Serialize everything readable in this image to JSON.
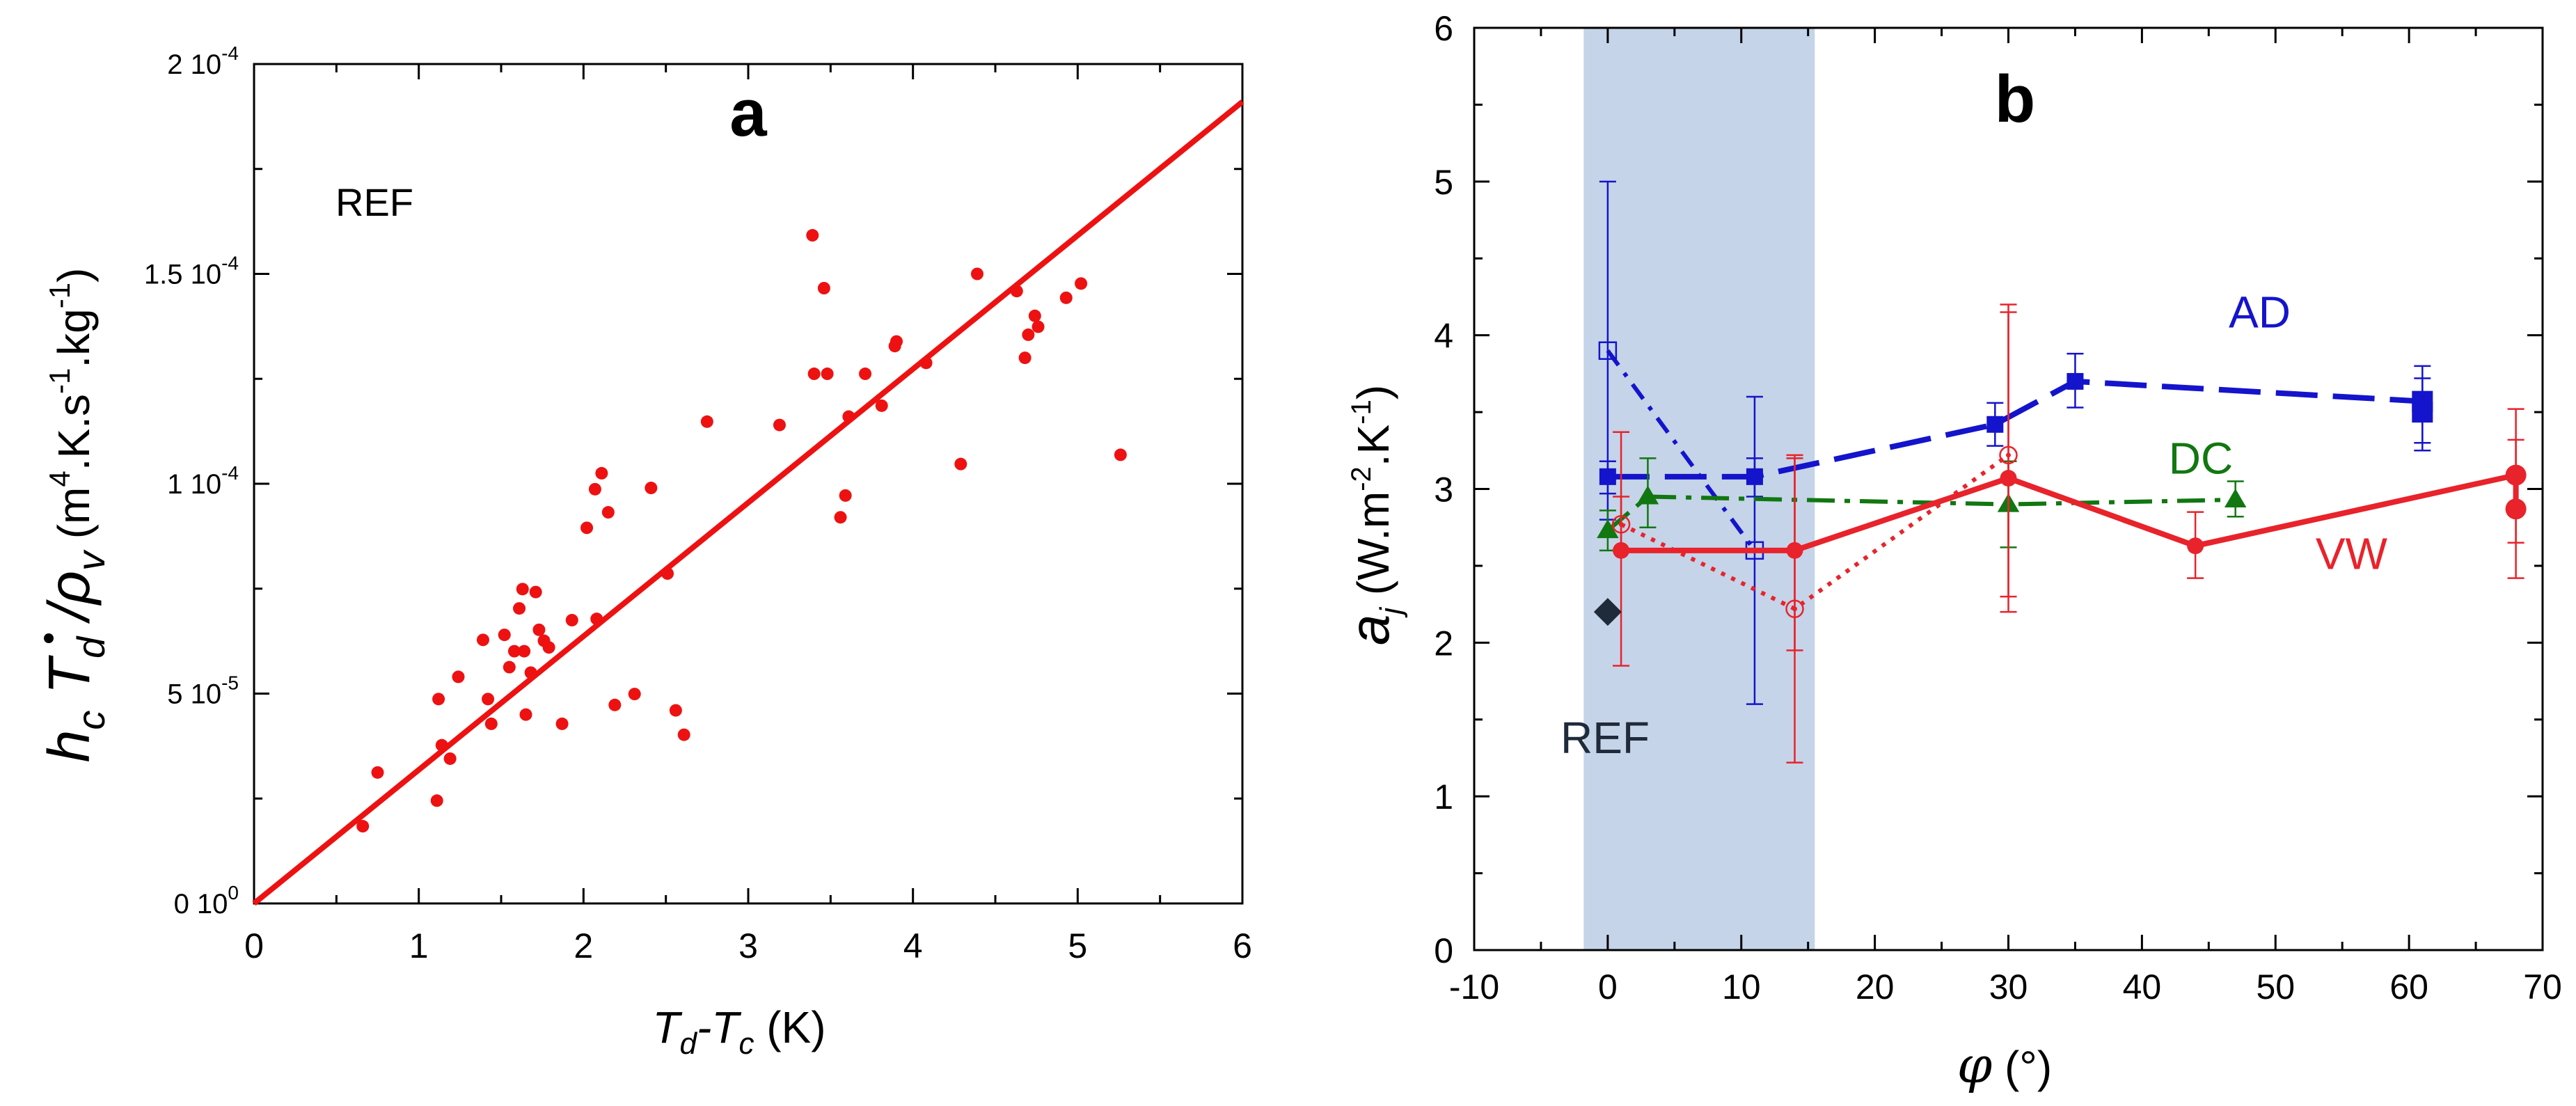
{
  "colors": {
    "axis": "#000000",
    "fit_line": "#ee1111",
    "scatter": "#ee1111",
    "vw": "#e8232b",
    "ad": "#1414cc",
    "dc": "#117711",
    "ref_diamond": "#1f2a3a",
    "ref_band": "#c5d4e8"
  },
  "chart_data": [
    {
      "type": "scatter",
      "panel_label": "a",
      "annotation": "REF",
      "xlabel": {
        "main1": "T",
        "sub1": "d",
        "sep": "-T",
        "sub2": "c",
        "unit": " (K)"
      },
      "ylabel": {
        "h": "h",
        "c": "c",
        "T": " T",
        "d": "d",
        "slash": " /",
        "rho": "ρ",
        "v": "v",
        "unit1": " (m",
        "u4": "4",
        "unit2": ".K.s",
        "um1": "-1",
        "unit3": ".kg",
        "um2": "-1",
        "unit4": ")"
      },
      "xlim": [
        0,
        6
      ],
      "ylim": [
        0,
        0.0002
      ],
      "x_ticks": [
        {
          "value": 0,
          "label": "0"
        },
        {
          "value": 1,
          "label": "1"
        },
        {
          "value": 2,
          "label": "2"
        },
        {
          "value": 3,
          "label": "3"
        },
        {
          "value": 4,
          "label": "4"
        },
        {
          "value": 5,
          "label": "5"
        },
        {
          "value": 6,
          "label": "6"
        }
      ],
      "y_ticks": [
        {
          "value": 0,
          "mant": "0 10",
          "exp": "0"
        },
        {
          "value": 5e-05,
          "mant": "5 10",
          "exp": "-5"
        },
        {
          "value": 0.0001,
          "mant": "1 10",
          "exp": "-4"
        },
        {
          "value": 0.00015,
          "mant": "1.5 10",
          "exp": "-4"
        },
        {
          "value": 0.0002,
          "mant": "2 10",
          "exp": "-4"
        }
      ],
      "fit_line": {
        "x": [
          0,
          6
        ],
        "y": [
          0,
          0.000191
        ]
      },
      "points": [
        [
          0.66,
          1.84e-05
        ],
        [
          0.75,
          3.12e-05
        ],
        [
          1.11,
          2.45e-05
        ],
        [
          1.12,
          4.87e-05
        ],
        [
          1.14,
          3.77e-05
        ],
        [
          1.19,
          3.45e-05
        ],
        [
          1.24,
          5.4e-05
        ],
        [
          1.39,
          6.28e-05
        ],
        [
          1.42,
          4.87e-05
        ],
        [
          1.44,
          4.28e-05
        ],
        [
          1.52,
          6.4e-05
        ],
        [
          1.55,
          5.63e-05
        ],
        [
          1.58,
          6.01e-05
        ],
        [
          1.61,
          7.03e-05
        ],
        [
          1.63,
          7.49e-05
        ],
        [
          1.64,
          6.01e-05
        ],
        [
          1.65,
          4.5e-05
        ],
        [
          1.68,
          5.5e-05
        ],
        [
          1.71,
          7.42e-05
        ],
        [
          1.73,
          6.52e-05
        ],
        [
          1.76,
          6.26e-05
        ],
        [
          1.79,
          6.1e-05
        ],
        [
          1.87,
          4.28e-05
        ],
        [
          1.93,
          6.75e-05
        ],
        [
          2.02,
          8.95e-05
        ],
        [
          2.07,
          9.87e-05
        ],
        [
          2.08,
          6.78e-05
        ],
        [
          2.11,
          0.0001025
        ],
        [
          2.15,
          9.32e-05
        ],
        [
          2.19,
          4.73e-05
        ],
        [
          2.31,
          4.99e-05
        ],
        [
          2.41,
          9.9e-05
        ],
        [
          2.51,
          7.86e-05
        ],
        [
          2.56,
          4.6e-05
        ],
        [
          2.61,
          4.02e-05
        ],
        [
          2.75,
          0.0001148
        ],
        [
          3.19,
          0.000114
        ],
        [
          3.39,
          0.0001592
        ],
        [
          3.4,
          0.0001262
        ],
        [
          3.46,
          0.0001466
        ],
        [
          3.48,
          0.0001262
        ],
        [
          3.56,
          9.2e-05
        ],
        [
          3.59,
          9.72e-05
        ],
        [
          3.61,
          0.000116
        ],
        [
          3.71,
          0.0001262
        ],
        [
          3.81,
          0.0001186
        ],
        [
          3.89,
          0.0001328
        ],
        [
          3.9,
          0.0001339
        ],
        [
          4.08,
          0.0001288
        ],
        [
          4.29,
          0.0001047
        ],
        [
          4.39,
          0.00015
        ],
        [
          4.63,
          0.0001459
        ],
        [
          4.68,
          0.00013
        ],
        [
          4.7,
          0.0001355
        ],
        [
          4.74,
          0.00014
        ],
        [
          4.76,
          0.0001374
        ],
        [
          4.93,
          0.0001443
        ],
        [
          5.02,
          0.0001477
        ],
        [
          5.26,
          0.0001069
        ]
      ]
    },
    {
      "type": "line",
      "panel_label": "b",
      "annotation": "REF",
      "xlabel": {
        "symbol": "φ",
        "unit": " (°)"
      },
      "ylabel": {
        "a": "a",
        "j": "j",
        "unit1": " (W.m",
        "um2": "-2",
        "unit2": ".K",
        "um1": "-1",
        "unit3": ")"
      },
      "xlim": [
        -10,
        70
      ],
      "ylim": [
        0,
        6
      ],
      "x_ticks": [
        {
          "value": -10,
          "label": "-10"
        },
        {
          "value": 0,
          "label": "0"
        },
        {
          "value": 10,
          "label": "10"
        },
        {
          "value": 20,
          "label": "20"
        },
        {
          "value": 30,
          "label": "30"
        },
        {
          "value": 40,
          "label": "40"
        },
        {
          "value": 50,
          "label": "50"
        },
        {
          "value": 60,
          "label": "60"
        },
        {
          "value": 70,
          "label": "70"
        }
      ],
      "y_ticks": [
        {
          "value": 0,
          "label": "0"
        },
        {
          "value": 1,
          "label": "1"
        },
        {
          "value": 2,
          "label": "2"
        },
        {
          "value": 3,
          "label": "3"
        },
        {
          "value": 4,
          "label": "4"
        },
        {
          "value": 5,
          "label": "5"
        },
        {
          "value": 6,
          "label": "6"
        }
      ],
      "ref_band": {
        "x": [
          -1.8,
          15.5
        ]
      },
      "ref_point": {
        "x": 0,
        "y": 2.2
      },
      "series": [
        {
          "name": "AD",
          "label_at": [
            46.5,
            4.05
          ],
          "points": [
            {
              "x": 0,
              "y": 3.08,
              "lo": 2.97,
              "hi": 3.18
            },
            {
              "x": 11,
              "y": 3.08,
              "lo": 2.95,
              "hi": 3.2
            },
            {
              "x": 29,
              "y": 3.42,
              "lo": 3.28,
              "hi": 3.56
            },
            {
              "x": 35,
              "y": 3.7,
              "lo": 3.53,
              "hi": 3.88
            },
            {
              "x": 61,
              "y": 3.57,
              "lo": 3.3,
              "hi": 3.8
            },
            {
              "x": 61,
              "y": 3.5,
              "lo": 3.25,
              "hi": 3.72
            }
          ],
          "open_points": [
            {
              "x": 0,
              "y": 3.9,
              "lo": 2.8,
              "hi": 5.0
            },
            {
              "x": 11,
              "y": 2.6,
              "lo": 1.6,
              "hi": 3.6
            }
          ]
        },
        {
          "name": "DC",
          "label_at": [
            42,
            3.1
          ],
          "points": [
            {
              "x": 0,
              "y": 2.73,
              "lo": 2.6,
              "hi": 2.86
            },
            {
              "x": 3,
              "y": 2.95,
              "lo": 2.75,
              "hi": 3.2
            },
            {
              "x": 30,
              "y": 2.9,
              "lo": 2.62,
              "hi": 3.18
            },
            {
              "x": 47,
              "y": 2.93,
              "lo": 2.82,
              "hi": 3.05
            }
          ]
        },
        {
          "name": "VW",
          "label_at": [
            53,
            2.48
          ],
          "points": [
            {
              "x": 1,
              "y": 2.6,
              "lo": 1.85,
              "hi": 3.37
            },
            {
              "x": 14,
              "y": 2.6,
              "lo": 1.95,
              "hi": 3.22
            },
            {
              "x": 30,
              "y": 3.07,
              "lo": 2.2,
              "hi": 4.2
            },
            {
              "x": 44,
              "y": 2.63,
              "lo": 2.42,
              "hi": 2.85
            },
            {
              "x": 68,
              "y": 3.09,
              "lo": 2.65,
              "hi": 3.52
            },
            {
              "x": 68,
              "y": 2.87,
              "lo": 2.42,
              "hi": 3.32
            }
          ],
          "open_points": [
            {
              "x": 1,
              "y": 2.77,
              "lo": 2.6,
              "hi": 2.95
            },
            {
              "x": 14,
              "y": 2.22,
              "lo": 1.22,
              "hi": 3.2
            },
            {
              "x": 30,
              "y": 3.22,
              "lo": 2.3,
              "hi": 4.15
            }
          ]
        }
      ]
    }
  ]
}
